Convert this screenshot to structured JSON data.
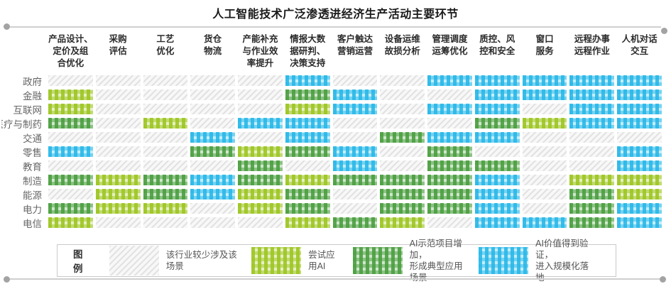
{
  "title": "人工智能技术广泛渗透进经济生产活动主要环节",
  "legend": {
    "title": "图例",
    "items": [
      {
        "level": 0,
        "label": "该行业较少涉及该场景"
      },
      {
        "level": 1,
        "label": "尝试应用AI"
      },
      {
        "level": 2,
        "label": "AI示范项目增加，\n形成典型应用场景"
      },
      {
        "level": 3,
        "label": "AI价值得到验证，\n进入规模化落地"
      }
    ]
  },
  "chart_data": {
    "type": "heatmap",
    "columns": [
      "产品设计、\n定价及组\n合优化",
      "采购\n评估",
      "工艺\n优化",
      "货仓\n物流",
      "产能补充\n与作业效\n率提升",
      "情报大数\n据研判、\n决策支持",
      "客户触达\n营销运营",
      "设备运维\n故损分析",
      "管理调度\n运筹优化",
      "质控、风\n控和安全",
      "窗口\n服务",
      "远程办事\n远程作业",
      "人机对话\n交互"
    ],
    "rows": [
      "政府",
      "金融",
      "互联网",
      "医疗与制药",
      "交通",
      "零售",
      "教育",
      "制造",
      "能源",
      "电力",
      "电信"
    ],
    "levels": [
      {
        "value": 0,
        "label": "该行业较少涉及该场景",
        "color": "#e2e2e2",
        "pattern": "diagonal-hatch"
      },
      {
        "value": 1,
        "label": "尝试应用AI",
        "color": "#9dc521",
        "pattern": "gingham"
      },
      {
        "value": 2,
        "label": "AI示范项目增加，形成典型应用场景",
        "color": "#4a9e3f",
        "pattern": "gingham"
      },
      {
        "value": 3,
        "label": "AI价值得到验证，进入规模化落地",
        "color": "#27b8e8",
        "pattern": "gingham"
      }
    ],
    "matrix": [
      [
        0,
        0,
        0,
        0,
        0,
        3,
        0,
        0,
        3,
        3,
        3,
        3,
        3
      ],
      [
        1,
        0,
        0,
        0,
        0,
        2,
        3,
        0,
        0,
        3,
        3,
        3,
        3
      ],
      [
        1,
        0,
        0,
        0,
        0,
        1,
        3,
        0,
        3,
        3,
        0,
        3,
        3
      ],
      [
        2,
        0,
        1,
        0,
        3,
        3,
        0,
        0,
        0,
        2,
        1,
        3,
        3
      ],
      [
        0,
        0,
        0,
        3,
        0,
        3,
        0,
        2,
        3,
        3,
        0,
        0,
        0
      ],
      [
        3,
        0,
        0,
        2,
        1,
        2,
        3,
        0,
        2,
        0,
        0,
        0,
        3
      ],
      [
        0,
        0,
        0,
        0,
        2,
        0,
        3,
        0,
        2,
        2,
        0,
        0,
        3
      ],
      [
        2,
        1,
        2,
        3,
        2,
        1,
        2,
        2,
        2,
        3,
        0,
        1,
        1
      ],
      [
        0,
        1,
        2,
        3,
        1,
        2,
        0,
        2,
        2,
        3,
        0,
        2,
        1
      ],
      [
        2,
        1,
        1,
        0,
        1,
        2,
        0,
        2,
        2,
        3,
        0,
        2,
        3
      ],
      [
        1,
        0,
        0,
        0,
        0,
        1,
        2,
        1,
        0,
        3,
        3,
        2,
        3
      ]
    ]
  }
}
